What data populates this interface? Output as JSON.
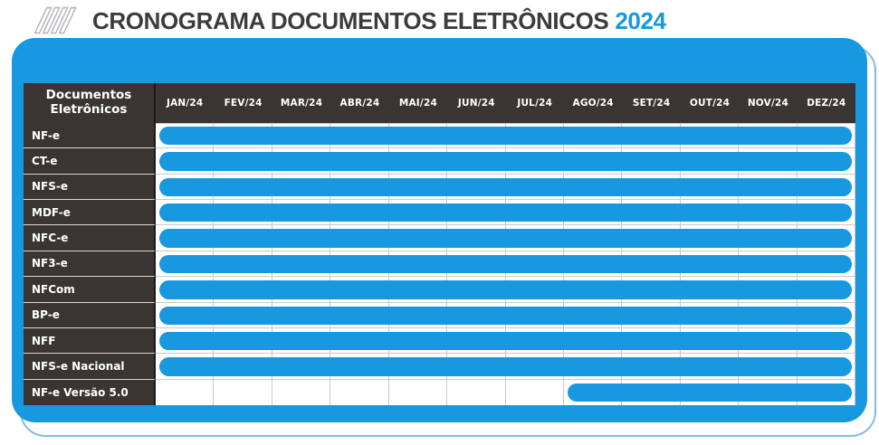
{
  "header": {
    "title": "CRONOGRAMA DOCUMENTOS ELETRÔNICOS",
    "year": "2024",
    "icon": "hatch-stripes-icon"
  },
  "colors": {
    "accent_blue": "#1798DF",
    "header_dark": "#3A3533",
    "grid_line": "#C9C9C9",
    "back_card_border": "#7FBCE0",
    "title_text": "#3C3C3C"
  },
  "table": {
    "corner_header": "Documentos Eletrônicos",
    "months": [
      "JAN/24",
      "FEV/24",
      "MAR/24",
      "ABR/24",
      "MAI/24",
      "JUN/24",
      "JUL/24",
      "AGO/24",
      "SET/24",
      "OUT/24",
      "NOV/24",
      "DEZ/24"
    ],
    "rows": [
      {
        "label": "NF-e",
        "bar": {
          "start": "JAN/24",
          "end": "DEZ/24"
        }
      },
      {
        "label": "CT-e",
        "bar": {
          "start": "JAN/24",
          "end": "DEZ/24"
        }
      },
      {
        "label": "NFS-e",
        "bar": {
          "start": "JAN/24",
          "end": "DEZ/24"
        }
      },
      {
        "label": "MDF-e",
        "bar": {
          "start": "JAN/24",
          "end": "DEZ/24"
        }
      },
      {
        "label": "NFC-e",
        "bar": {
          "start": "JAN/24",
          "end": "DEZ/24"
        }
      },
      {
        "label": "NF3-e",
        "bar": {
          "start": "JAN/24",
          "end": "DEZ/24"
        }
      },
      {
        "label": "NFCom",
        "bar": {
          "start": "JAN/24",
          "end": "DEZ/24"
        }
      },
      {
        "label": "BP-e",
        "bar": {
          "start": "JAN/24",
          "end": "DEZ/24"
        }
      },
      {
        "label": "NFF",
        "bar": {
          "start": "JAN/24",
          "end": "DEZ/24"
        }
      },
      {
        "label": "NFS-e Nacional",
        "bar": {
          "start": "JAN/24",
          "end": "DEZ/24"
        }
      },
      {
        "label": "NF-e Versão 5.0",
        "bar": {
          "start": "AGO/24",
          "end": "DEZ/24"
        }
      }
    ]
  },
  "chart_data": {
    "type": "bar",
    "subtype": "gantt-schedule",
    "title": "CRONOGRAMA DOCUMENTOS ELETRÔNICOS 2024",
    "x_categories": [
      "JAN/24",
      "FEV/24",
      "MAR/24",
      "ABR/24",
      "MAI/24",
      "JUN/24",
      "JUL/24",
      "AGO/24",
      "SET/24",
      "OUT/24",
      "NOV/24",
      "DEZ/24"
    ],
    "categories": [
      "NF-e",
      "CT-e",
      "NFS-e",
      "MDF-e",
      "NFC-e",
      "NF3-e",
      "NFCom",
      "BP-e",
      "NFF",
      "NFS-e Nacional",
      "NF-e Versão 5.0"
    ],
    "series": [
      {
        "name": "NF-e",
        "start": "JAN/24",
        "end": "DEZ/24",
        "span_months": 12
      },
      {
        "name": "CT-e",
        "start": "JAN/24",
        "end": "DEZ/24",
        "span_months": 12
      },
      {
        "name": "NFS-e",
        "start": "JAN/24",
        "end": "DEZ/24",
        "span_months": 12
      },
      {
        "name": "MDF-e",
        "start": "JAN/24",
        "end": "DEZ/24",
        "span_months": 12
      },
      {
        "name": "NFC-e",
        "start": "JAN/24",
        "end": "DEZ/24",
        "span_months": 12
      },
      {
        "name": "NF3-e",
        "start": "JAN/24",
        "end": "DEZ/24",
        "span_months": 12
      },
      {
        "name": "NFCom",
        "start": "JAN/24",
        "end": "DEZ/24",
        "span_months": 12
      },
      {
        "name": "BP-e",
        "start": "JAN/24",
        "end": "DEZ/24",
        "span_months": 12
      },
      {
        "name": "NFF",
        "start": "JAN/24",
        "end": "DEZ/24",
        "span_months": 12
      },
      {
        "name": "NFS-e Nacional",
        "start": "JAN/24",
        "end": "DEZ/24",
        "span_months": 12
      },
      {
        "name": "NF-e Versão 5.0",
        "start": "AGO/24",
        "end": "DEZ/24",
        "span_months": 5
      }
    ],
    "bar_color": "#1798DF",
    "grid": true,
    "legend": false
  }
}
